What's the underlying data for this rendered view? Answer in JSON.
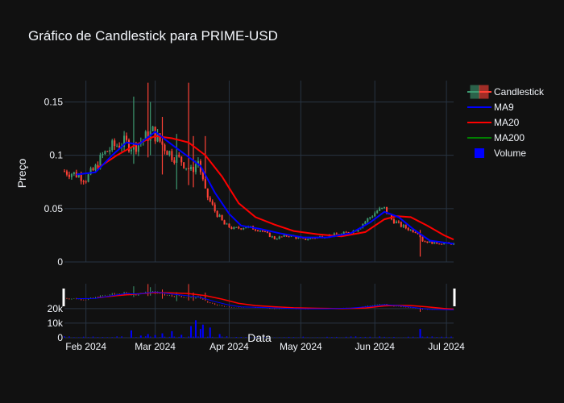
{
  "chart_data": {
    "type": "candlestick",
    "title": "Gráfico de Candlestick para PRIME-USD",
    "xlabel": "Data",
    "ylabel": "Preço",
    "y_ticks": [
      "0",
      "0.05",
      "0.1",
      "0.15"
    ],
    "ylim": [
      0,
      0.17
    ],
    "volume_ticks": [
      "0",
      "10k",
      "20k"
    ],
    "x_ticks": [
      "Feb 2024",
      "Mar 2024",
      "Apr 2024",
      "May 2024",
      "Jun 2024",
      "Jul 2024"
    ],
    "x_tick_dates": [
      "2024-02-01",
      "2024-03-01",
      "2024-04-01",
      "2024-05-01",
      "2024-06-01",
      "2024-07-01"
    ],
    "date_range": [
      "2024-01-23",
      "2024-07-04"
    ],
    "legend": [
      "Candlestick",
      "MA9",
      "MA20",
      "MA200",
      "Volume"
    ],
    "legend_position": "top-right",
    "colors": {
      "background": "#111111",
      "grid": "#283442",
      "increasing": "#3d9970",
      "decreasing": "#ff4136",
      "ma9": "#0000ff",
      "ma20": "#ff0000",
      "ma200": "#008000",
      "volume": "#0000ff",
      "text": "#f2f5fa"
    },
    "anchors": [
      [
        "2024-01-23",
        0.085
      ],
      [
        "2024-01-28",
        0.082
      ],
      [
        "2024-02-01",
        0.078
      ],
      [
        "2024-02-05",
        0.088
      ],
      [
        "2024-02-08",
        0.1
      ],
      [
        "2024-02-12",
        0.108
      ],
      [
        "2024-02-17",
        0.112
      ],
      [
        "2024-02-21",
        0.108
      ],
      [
        "2024-02-25",
        0.115
      ],
      [
        "2024-02-29",
        0.122
      ],
      [
        "2024-03-04",
        0.11
      ],
      [
        "2024-03-08",
        0.1
      ],
      [
        "2024-03-12",
        0.095
      ],
      [
        "2024-03-16",
        0.085
      ],
      [
        "2024-03-19",
        0.095
      ],
      [
        "2024-03-22",
        0.065
      ],
      [
        "2024-03-26",
        0.048
      ],
      [
        "2024-03-30",
        0.035
      ],
      [
        "2024-04-03",
        0.031
      ],
      [
        "2024-04-08",
        0.033
      ],
      [
        "2024-04-14",
        0.03
      ],
      [
        "2024-04-20",
        0.022
      ],
      [
        "2024-04-26",
        0.025
      ],
      [
        "2024-05-02",
        0.021
      ],
      [
        "2024-05-10",
        0.024
      ],
      [
        "2024-05-18",
        0.026
      ],
      [
        "2024-05-24",
        0.03
      ],
      [
        "2024-05-29",
        0.04
      ],
      [
        "2024-06-02",
        0.048
      ],
      [
        "2024-06-05",
        0.05
      ],
      [
        "2024-06-08",
        0.04
      ],
      [
        "2024-06-12",
        0.034
      ],
      [
        "2024-06-16",
        0.03
      ],
      [
        "2024-06-19",
        0.028
      ],
      [
        "2024-06-21",
        0.02
      ],
      [
        "2024-06-25",
        0.018
      ],
      [
        "2024-07-04",
        0.017
      ]
    ],
    "spikes": [
      {
        "date": "2024-02-21",
        "high": 0.155,
        "low": 0.092
      },
      {
        "date": "2024-02-27",
        "high": 0.168,
        "low": 0.098
      },
      {
        "date": "2024-02-28",
        "high": 0.15,
        "low": 0.1
      },
      {
        "date": "2024-03-04",
        "high": 0.136,
        "low": 0.082
      },
      {
        "date": "2024-03-10",
        "high": 0.12,
        "low": 0.068
      },
      {
        "date": "2024-03-15",
        "high": 0.168,
        "low": 0.072
      },
      {
        "date": "2024-03-17",
        "high": 0.118,
        "low": 0.07
      },
      {
        "date": "2024-03-22",
        "high": 0.118,
        "low": 0.07
      },
      {
        "date": "2024-06-20",
        "high": 0.03,
        "low": 0.005
      }
    ],
    "ma9": [
      [
        "2024-01-28",
        0.082
      ],
      [
        "2024-02-05",
        0.084
      ],
      [
        "2024-02-12",
        0.1
      ],
      [
        "2024-02-18",
        0.112
      ],
      [
        "2024-02-23",
        0.11
      ],
      [
        "2024-03-01",
        0.122
      ],
      [
        "2024-03-08",
        0.11
      ],
      [
        "2024-03-14",
        0.1
      ],
      [
        "2024-03-20",
        0.09
      ],
      [
        "2024-03-26",
        0.065
      ],
      [
        "2024-04-01",
        0.045
      ],
      [
        "2024-04-06",
        0.034
      ],
      [
        "2024-04-14",
        0.031
      ],
      [
        "2024-04-22",
        0.027
      ],
      [
        "2024-05-02",
        0.023
      ],
      [
        "2024-05-12",
        0.023
      ],
      [
        "2024-05-22",
        0.027
      ],
      [
        "2024-05-30",
        0.037
      ],
      [
        "2024-06-05",
        0.047
      ],
      [
        "2024-06-11",
        0.042
      ],
      [
        "2024-06-17",
        0.031
      ],
      [
        "2024-06-24",
        0.02
      ],
      [
        "2024-07-04",
        0.017
      ]
    ],
    "ma20": [
      [
        "2024-02-06",
        0.088
      ],
      [
        "2024-02-14",
        0.1
      ],
      [
        "2024-02-22",
        0.11
      ],
      [
        "2024-03-01",
        0.118
      ],
      [
        "2024-03-08",
        0.116
      ],
      [
        "2024-03-15",
        0.112
      ],
      [
        "2024-03-22",
        0.1
      ],
      [
        "2024-03-29",
        0.08
      ],
      [
        "2024-04-05",
        0.055
      ],
      [
        "2024-04-12",
        0.042
      ],
      [
        "2024-04-20",
        0.035
      ],
      [
        "2024-04-28",
        0.029
      ],
      [
        "2024-05-08",
        0.026
      ],
      [
        "2024-05-18",
        0.024
      ],
      [
        "2024-05-28",
        0.028
      ],
      [
        "2024-06-05",
        0.04
      ],
      [
        "2024-06-10",
        0.043
      ],
      [
        "2024-06-16",
        0.042
      ],
      [
        "2024-06-23",
        0.034
      ],
      [
        "2024-06-30",
        0.025
      ],
      [
        "2024-07-04",
        0.021
      ]
    ],
    "volume_bars": [
      {
        "date": "2024-02-20",
        "value": 5000
      },
      {
        "date": "2024-02-24",
        "value": 1500
      },
      {
        "date": "2024-02-27",
        "value": 2500
      },
      {
        "date": "2024-03-01",
        "value": 1800
      },
      {
        "date": "2024-03-04",
        "value": 3000
      },
      {
        "date": "2024-03-08",
        "value": 4500
      },
      {
        "date": "2024-03-12",
        "value": 2000
      },
      {
        "date": "2024-03-16",
        "value": 8000
      },
      {
        "date": "2024-03-18",
        "value": 12000
      },
      {
        "date": "2024-03-20",
        "value": 6000
      },
      {
        "date": "2024-03-21",
        "value": 9000
      },
      {
        "date": "2024-03-24",
        "value": 7000
      },
      {
        "date": "2024-03-28",
        "value": 2500
      },
      {
        "date": "2024-06-20",
        "value": 6000
      }
    ]
  }
}
